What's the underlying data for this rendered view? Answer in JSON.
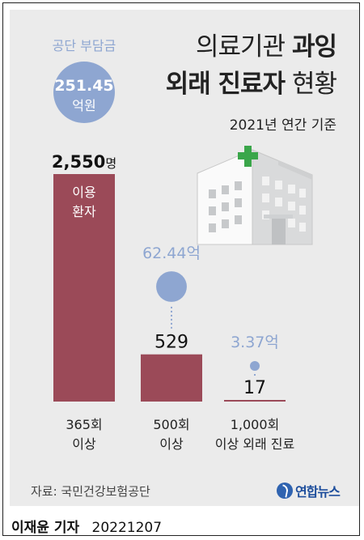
{
  "title": {
    "part1_light": "의료기관",
    "part1_bold": "과잉",
    "part2_bold": "외래 진료자",
    "part2_light": "현황"
  },
  "subtitle": "2021년 연간 기준",
  "source": "자료: 국민건강보험공단",
  "logo": {
    "text": "연합뉴스",
    "color": "#2f63b0"
  },
  "footer": {
    "reporter": "이재윤 기자",
    "date": "20221207"
  },
  "colors": {
    "bar": "#9b4a58",
    "bubble": "#8ea6d1",
    "bubble_text": "#8ea6d1",
    "background": "#ebebeb"
  },
  "chart_data": {
    "type": "bar",
    "categories": [
      "365회\n이상",
      "500회\n이상",
      "1,000회\n이상 외래 진료"
    ],
    "values": [
      2550,
      529,
      17
    ],
    "value_labels": [
      "2,550명",
      "529",
      "17"
    ],
    "bar_inner_label": "이용\n환자",
    "cost": {
      "header": "공단 부담금",
      "values": [
        251.45,
        62.44,
        3.37
      ],
      "labels": [
        "251.45\n억원",
        "62.44억",
        "3.37억"
      ]
    },
    "ylim": [
      0,
      2550
    ],
    "grid": false,
    "title": "",
    "xlabel": "",
    "ylabel": ""
  }
}
